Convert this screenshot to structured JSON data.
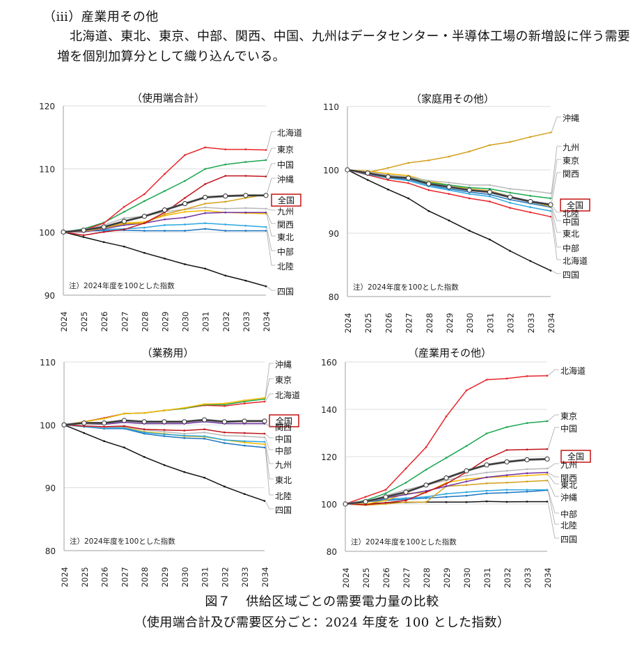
{
  "section_heading": "（ⅲ）産業用その他",
  "paragraph": "北海道、東北、東京、中部、関西、中国、九州はデータセンター・半導体工場の新増設に伴う需要増を個別加算分として織り込んでいる。",
  "figure_caption": {
    "number": "図７",
    "title": "供給区域ごとの需要電力量の比較",
    "subtitle": "（使用端合計及び需要区分ごと：2024 年度を 100 とした指数）"
  },
  "colors": {
    "北海道": "#e8242a",
    "東北": "#1f6fbf",
    "東京": "#1aa650",
    "中部": "#2aa6e0",
    "北陸": "#1b75c2",
    "関西": "#7030a0",
    "中国": "#c0141c",
    "四国": "#111111",
    "九州": "#b8b8b8",
    "沖縄": "#d4a01a",
    "沖縄_alt": "#f5b800",
    "全国": "#333333",
    "highlight_box": "#c00000",
    "grid": "#d9d9d9"
  },
  "chart_data": [
    {
      "type": "line",
      "title": "（使用端合計）",
      "note": "注）2024年度を100とした指数",
      "x": [
        "2024",
        "2025",
        "2026",
        "2027",
        "2028",
        "2029",
        "2030",
        "2031",
        "2032",
        "2033",
        "2034"
      ],
      "ylim": [
        90,
        120
      ],
      "yticks": [
        90,
        100,
        110,
        120
      ],
      "grid": true,
      "legend": "right-labels",
      "series": [
        {
          "name": "北海道",
          "color": "#e8242a",
          "values": [
            100,
            100.3,
            101.4,
            104.0,
            106.0,
            109.2,
            112.2,
            113.4,
            113.1,
            113.1,
            113.0
          ]
        },
        {
          "name": "東京",
          "color": "#1aa650",
          "values": [
            100,
            100.5,
            101.5,
            103.2,
            104.9,
            106.5,
            108.1,
            110.0,
            110.7,
            111.1,
            111.4
          ]
        },
        {
          "name": "中国",
          "color": "#c0141c",
          "values": [
            100,
            99.5,
            100.0,
            100.4,
            101.4,
            103.1,
            105.4,
            107.6,
            108.9,
            108.9,
            108.8
          ]
        },
        {
          "name": "沖縄",
          "color": "#d4a01a",
          "values": [
            100,
            100.1,
            100.6,
            101.3,
            101.4,
            102.8,
            103.6,
            104.5,
            104.8,
            105.4,
            105.9
          ]
        },
        {
          "name": "全国",
          "color": "#333333",
          "marker": "circle",
          "values": [
            100,
            100.3,
            100.8,
            101.7,
            102.5,
            103.5,
            104.5,
            105.5,
            105.7,
            105.8,
            105.8
          ]
        },
        {
          "name": "九州",
          "color": "#b8b8b8",
          "values": [
            100,
            100.3,
            101.1,
            102.2,
            102.5,
            103.2,
            103.6,
            103.9,
            103.7,
            103.8,
            103.7
          ]
        },
        {
          "name": "関西",
          "color": "#7030a0",
          "values": [
            100,
            100.0,
            100.5,
            101.1,
            101.4,
            102.0,
            102.3,
            103.0,
            103.1,
            103.1,
            103.1
          ]
        },
        {
          "name": "東北",
          "color": "#f5b800",
          "values": [
            100,
            100.0,
            100.7,
            101.4,
            101.6,
            102.6,
            103.2,
            103.4,
            103.1,
            103.0,
            102.9
          ]
        },
        {
          "name": "中部",
          "color": "#2aa6e0",
          "values": [
            100,
            100.4,
            100.4,
            100.5,
            100.7,
            101.1,
            101.2,
            101.4,
            101.2,
            101.0,
            100.8
          ]
        },
        {
          "name": "北陸",
          "color": "#1b75c2",
          "values": [
            100,
            100.2,
            100.2,
            100.3,
            100.2,
            100.2,
            100.2,
            100.5,
            100.2,
            100.2,
            100.2
          ]
        },
        {
          "name": "四国",
          "color": "#111111",
          "values": [
            100,
            99.2,
            98.4,
            97.7,
            96.7,
            95.8,
            94.9,
            94.2,
            93.1,
            92.3,
            91.4
          ]
        }
      ],
      "label_order": [
        "北海道",
        "東京",
        "中国",
        "沖縄",
        "全国",
        "九州",
        "関西",
        "東北",
        "中部",
        "北陸",
        "四国"
      ]
    },
    {
      "type": "line",
      "title": "（家庭用その他）",
      "note": "注）2024年度を100とした指数",
      "x": [
        "2024",
        "2025",
        "2026",
        "2027",
        "2028",
        "2029",
        "2030",
        "2031",
        "2032",
        "2033",
        "2034"
      ],
      "ylim": [
        80,
        110
      ],
      "yticks": [
        80,
        90,
        100,
        110
      ],
      "grid": true,
      "legend": "right-labels",
      "series": [
        {
          "name": "沖縄",
          "color": "#d4a01a",
          "values": [
            100,
            99.6,
            100.3,
            101.1,
            101.5,
            102.1,
            102.9,
            103.9,
            104.4,
            105.2,
            105.9
          ]
        },
        {
          "name": "九州",
          "color": "#b8b8b8",
          "values": [
            100,
            99.7,
            99.2,
            98.9,
            98.3,
            98.0,
            97.6,
            97.6,
            97.0,
            96.7,
            96.3
          ]
        },
        {
          "name": "東京",
          "color": "#1aa650",
          "values": [
            100,
            99.6,
            99.1,
            98.8,
            98.0,
            97.6,
            97.2,
            97.0,
            96.4,
            95.9,
            95.5
          ]
        },
        {
          "name": "関西",
          "color": "#7030a0",
          "values": [
            100,
            99.5,
            99.0,
            98.8,
            97.9,
            97.4,
            96.9,
            96.6,
            95.8,
            95.1,
            94.6
          ]
        },
        {
          "name": "全国",
          "color": "#333333",
          "marker": "circle",
          "values": [
            100,
            99.5,
            98.9,
            98.7,
            97.8,
            97.3,
            96.8,
            96.5,
            95.7,
            95.0,
            94.5
          ]
        },
        {
          "name": "北陸",
          "color": "#5a2a1a",
          "values": [
            100,
            99.5,
            99.0,
            98.8,
            97.8,
            97.3,
            96.8,
            96.4,
            95.6,
            94.9,
            94.4
          ]
        },
        {
          "name": "中国",
          "color": "#f5b800",
          "values": [
            100,
            99.8,
            99.4,
            99.1,
            98.2,
            97.6,
            97.0,
            96.7,
            95.8,
            95.0,
            94.2
          ]
        },
        {
          "name": "東北",
          "color": "#1b75c2",
          "values": [
            100,
            99.3,
            98.8,
            98.5,
            97.6,
            97.0,
            96.5,
            96.1,
            95.3,
            94.7,
            94.1
          ]
        },
        {
          "name": "中部",
          "color": "#2aa6e0",
          "values": [
            100,
            99.3,
            98.7,
            98.3,
            97.4,
            96.8,
            96.2,
            95.8,
            94.8,
            94.1,
            93.5
          ]
        },
        {
          "name": "北海道",
          "color": "#e8242a",
          "values": [
            100,
            99.2,
            98.4,
            97.9,
            96.8,
            96.2,
            95.5,
            95.0,
            94.0,
            93.3,
            92.6
          ]
        },
        {
          "name": "四国",
          "color": "#111111",
          "values": [
            100,
            98.4,
            96.9,
            95.5,
            93.5,
            92.0,
            90.4,
            89.0,
            87.2,
            85.6,
            84.1
          ]
        }
      ],
      "label_order": [
        "沖縄",
        "九州",
        "東京",
        "関西",
        "全国",
        "北陸",
        "中国",
        "東北",
        "中部",
        "北海道",
        "四国"
      ]
    },
    {
      "type": "line",
      "title": "（業務用）",
      "note": "注）2024年度を100とした指数",
      "x": [
        "2024",
        "2025",
        "2026",
        "2027",
        "2028",
        "2029",
        "2030",
        "2031",
        "2032",
        "2033",
        "2034"
      ],
      "ylim": [
        80,
        110
      ],
      "yticks": [
        80,
        90,
        100,
        110
      ],
      "grid": true,
      "legend": "right-labels",
      "series": [
        {
          "name": "沖縄",
          "color": "#f5b800",
          "values": [
            100,
            100.5,
            101.0,
            101.8,
            101.9,
            102.3,
            102.7,
            103.3,
            103.4,
            103.9,
            104.3
          ]
        },
        {
          "name": "東京",
          "color": "#1aa650",
          "values": [
            100,
            100.5,
            101.0,
            101.8,
            101.9,
            102.3,
            102.6,
            103.2,
            103.2,
            103.7,
            104.1
          ]
        },
        {
          "name": "北海道",
          "color": "#e8242a",
          "values": [
            100,
            100.5,
            101.1,
            101.8,
            101.9,
            102.3,
            102.6,
            103.1,
            103.0,
            103.4,
            103.7
          ]
        },
        {
          "name": "全国",
          "color": "#333333",
          "marker": "circle",
          "values": [
            100,
            100.3,
            100.3,
            100.7,
            100.5,
            100.5,
            100.5,
            100.8,
            100.5,
            100.6,
            100.6
          ]
        },
        {
          "name": "関西",
          "color": "#7030a0",
          "values": [
            100,
            100.2,
            100.1,
            100.4,
            100.2,
            100.2,
            100.2,
            100.5,
            100.2,
            100.2,
            100.2
          ]
        },
        {
          "name": "中国",
          "color": "#c0141c",
          "values": [
            100,
            99.8,
            99.7,
            99.8,
            99.3,
            99.2,
            99.1,
            99.3,
            98.8,
            98.7,
            98.6
          ]
        },
        {
          "name": "中部",
          "color": "#b8b8b8",
          "values": [
            100,
            99.8,
            99.6,
            99.7,
            99.2,
            98.9,
            98.6,
            98.8,
            98.3,
            98.2,
            98.0
          ]
        },
        {
          "name": "九州",
          "color": "#2aa6e0",
          "values": [
            100,
            99.7,
            99.5,
            99.5,
            98.8,
            98.5,
            98.3,
            98.2,
            97.6,
            97.4,
            97.3
          ]
        },
        {
          "name": "東北",
          "color": "#f5b800",
          "values": [
            100,
            99.8,
            99.6,
            99.6,
            98.9,
            98.6,
            98.2,
            98.1,
            97.6,
            97.2,
            96.9
          ]
        },
        {
          "name": "北陸",
          "color": "#1b75c2",
          "values": [
            100,
            99.7,
            99.4,
            99.4,
            98.6,
            98.2,
            97.9,
            97.8,
            97.1,
            96.7,
            96.4
          ]
        },
        {
          "name": "四国",
          "color": "#111111",
          "values": [
            100,
            98.7,
            97.4,
            96.4,
            94.9,
            93.6,
            92.5,
            91.6,
            90.2,
            89.0,
            87.9
          ]
        }
      ],
      "label_order": [
        "沖縄",
        "東京",
        "北海道",
        "全国",
        "関西",
        "中国",
        "中部",
        "九州",
        "東北",
        "北陸",
        "四国"
      ]
    },
    {
      "type": "line",
      "title": "（産業用その他）",
      "note": "注）2024年度を100とした指数",
      "x": [
        "2024",
        "2025",
        "2026",
        "2027",
        "2028",
        "2029",
        "2030",
        "2031",
        "2032",
        "2033",
        "2034"
      ],
      "ylim": [
        80,
        160
      ],
      "yticks": [
        80,
        100,
        120,
        140,
        160
      ],
      "grid": true,
      "legend": "right-labels",
      "series": [
        {
          "name": "北海道",
          "color": "#e8242a",
          "values": [
            100,
            103.0,
            106.0,
            115.0,
            124.0,
            137.0,
            148.0,
            152.5,
            153.0,
            154.0,
            154.2
          ]
        },
        {
          "name": "東京",
          "color": "#1aa650",
          "values": [
            100,
            101.5,
            104.5,
            109.0,
            114.5,
            119.5,
            124.5,
            129.8,
            132.5,
            134.2,
            135.0
          ]
        },
        {
          "name": "中国",
          "color": "#c0141c",
          "values": [
            100,
            99.7,
            100.5,
            101.5,
            105.0,
            108.5,
            113.5,
            119.0,
            122.8,
            123.0,
            123.2
          ]
        },
        {
          "name": "全国",
          "color": "#333333",
          "marker": "circle",
          "values": [
            100,
            101.0,
            103.0,
            105.0,
            108.0,
            111.0,
            114.0,
            116.5,
            117.8,
            118.7,
            119.0
          ]
        },
        {
          "name": "九州",
          "color": "#b8b8b8",
          "values": [
            100,
            101.0,
            103.5,
            106.0,
            108.0,
            110.0,
            112.0,
            113.3,
            114.0,
            114.7,
            115.0
          ]
        },
        {
          "name": "関西",
          "color": "#7030a0",
          "values": [
            100,
            100.8,
            102.5,
            104.0,
            105.5,
            107.5,
            109.5,
            111.3,
            112.2,
            113.0,
            113.3
          ]
        },
        {
          "name": "東北",
          "color": "#f5b800",
          "values": [
            100,
            100.0,
            101.5,
            104.5,
            104.8,
            109.0,
            110.5,
            111.2,
            111.6,
            112.0,
            112.5
          ]
        },
        {
          "name": "沖縄",
          "color": "#d4a01a",
          "values": [
            100,
            99.5,
            100.0,
            100.8,
            100.8,
            107.5,
            108.0,
            108.7,
            109.0,
            109.5,
            109.9
          ]
        },
        {
          "name": "中部",
          "color": "#2aa6e0",
          "values": [
            100,
            101.3,
            102.0,
            102.5,
            103.0,
            104.3,
            105.0,
            105.6,
            106.0,
            106.0,
            106.0
          ]
        },
        {
          "name": "北陸",
          "color": "#1b75c2",
          "values": [
            100,
            101.0,
            101.5,
            102.0,
            102.5,
            103.0,
            103.5,
            104.5,
            104.8,
            105.2,
            105.8
          ]
        },
        {
          "name": "四国",
          "color": "#111111",
          "values": [
            100,
            100.0,
            100.5,
            100.7,
            100.8,
            100.8,
            100.8,
            101.1,
            100.9,
            101.0,
            101.0
          ]
        }
      ],
      "label_order": [
        "北海道",
        "東京",
        "中国",
        "全国",
        "九州",
        "関西",
        "東北",
        "沖縄",
        "中部",
        "北陸",
        "四国"
      ]
    }
  ]
}
